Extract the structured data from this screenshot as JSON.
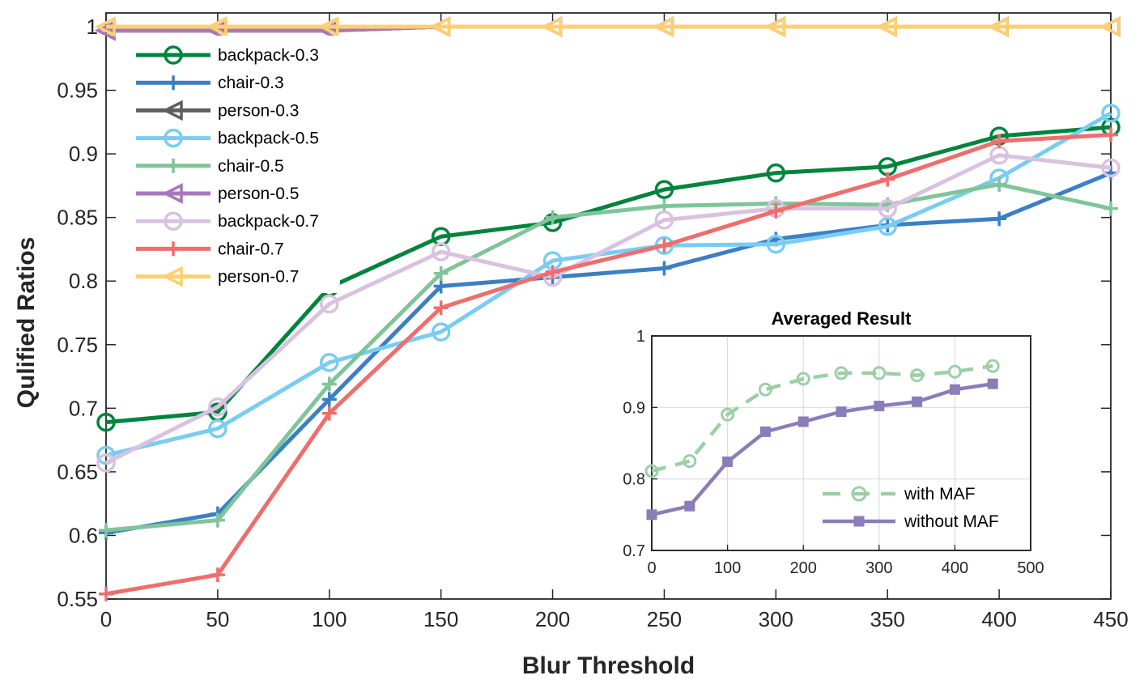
{
  "chart_data": [
    {
      "type": "line",
      "xlabel": "Blur Threshold",
      "ylabel": "Qulified Ratios",
      "x": [
        0,
        50,
        100,
        150,
        200,
        250,
        300,
        350,
        400,
        450
      ],
      "xlim": [
        0,
        450
      ],
      "ylim": [
        0.55,
        1
      ],
      "xticks": [
        0,
        50,
        100,
        150,
        200,
        250,
        300,
        350,
        400,
        450
      ],
      "yticks": [
        0.55,
        0.6,
        0.65,
        0.7,
        0.75,
        0.8,
        0.85,
        0.9,
        0.95,
        1
      ],
      "ytick_labels": [
        "0.55",
        "0.6",
        "0.65",
        "0.7",
        "0.75",
        "0.8",
        "0.85",
        "0.9",
        "0.95",
        "1"
      ],
      "legend_position": "top-left",
      "series": [
        {
          "name": "backpack-0.3",
          "color": "#00843d",
          "marker": "circle",
          "values": [
            0.689,
            0.697,
            0.795,
            0.835,
            0.846,
            0.872,
            0.885,
            0.89,
            0.914,
            0.921
          ]
        },
        {
          "name": "chair-0.3",
          "color": "#3b7fc4",
          "marker": "plus",
          "values": [
            0.602,
            0.617,
            0.707,
            0.796,
            0.803,
            0.81,
            0.833,
            0.844,
            0.849,
            0.885
          ]
        },
        {
          "name": "person-0.3",
          "color": "#5f5f5f",
          "marker": "triangle-left",
          "values": [
            0.997,
            0.997,
            0.997,
            1.0,
            1.0,
            1.0,
            1.0,
            1.0,
            1.0,
            1.0
          ]
        },
        {
          "name": "backpack-0.5",
          "color": "#79ccf2",
          "marker": "circle",
          "values": [
            0.663,
            0.684,
            0.736,
            0.76,
            0.816,
            0.828,
            0.829,
            0.843,
            0.881,
            0.932
          ]
        },
        {
          "name": "chair-0.5",
          "color": "#80c499",
          "marker": "plus",
          "values": [
            0.604,
            0.612,
            0.719,
            0.806,
            0.85,
            0.859,
            0.861,
            0.86,
            0.876,
            0.857
          ]
        },
        {
          "name": "person-0.5",
          "color": "#a877bd",
          "marker": "triangle-left",
          "values": [
            0.997,
            0.997,
            0.997,
            1.0,
            1.0,
            1.0,
            1.0,
            1.0,
            1.0,
            1.0
          ]
        },
        {
          "name": "backpack-0.7",
          "color": "#d9c2e0",
          "marker": "circle",
          "values": [
            0.657,
            0.701,
            0.782,
            0.823,
            0.803,
            0.848,
            0.857,
            0.857,
            0.899,
            0.889
          ]
        },
        {
          "name": "chair-0.7",
          "color": "#ee6e6e",
          "marker": "plus",
          "values": [
            0.554,
            0.569,
            0.696,
            0.779,
            0.807,
            0.828,
            0.855,
            0.88,
            0.91,
            0.915
          ]
        },
        {
          "name": "person-0.7",
          "color": "#fcd072",
          "marker": "triangle-left",
          "values": [
            1.0,
            1.0,
            1.0,
            1.0,
            1.0,
            1.0,
            1.0,
            1.0,
            1.0,
            1.0
          ]
        }
      ]
    },
    {
      "type": "line",
      "title": "Averaged Result",
      "x": [
        0,
        50,
        100,
        150,
        200,
        250,
        300,
        350,
        400,
        450
      ],
      "xlim": [
        0,
        500
      ],
      "ylim": [
        0.7,
        1
      ],
      "xticks": [
        0,
        100,
        200,
        300,
        400,
        500
      ],
      "yticks": [
        0.7,
        0.8,
        0.9,
        1
      ],
      "ytick_labels": [
        "0.7",
        "0.8",
        "0.9",
        "1"
      ],
      "grid": true,
      "legend_position": "bottom-right",
      "series": [
        {
          "name": "with MAF",
          "color": "#9ccfa6",
          "marker": "circle",
          "line": "dashed",
          "values": [
            0.811,
            0.825,
            0.89,
            0.925,
            0.94,
            0.948,
            0.948,
            0.945,
            0.95,
            0.958
          ]
        },
        {
          "name": "without MAF",
          "color": "#8b7db8",
          "marker": "square",
          "line": "solid",
          "values": [
            0.75,
            0.762,
            0.824,
            0.866,
            0.88,
            0.894,
            0.902,
            0.908,
            0.925,
            0.933
          ]
        }
      ]
    }
  ]
}
